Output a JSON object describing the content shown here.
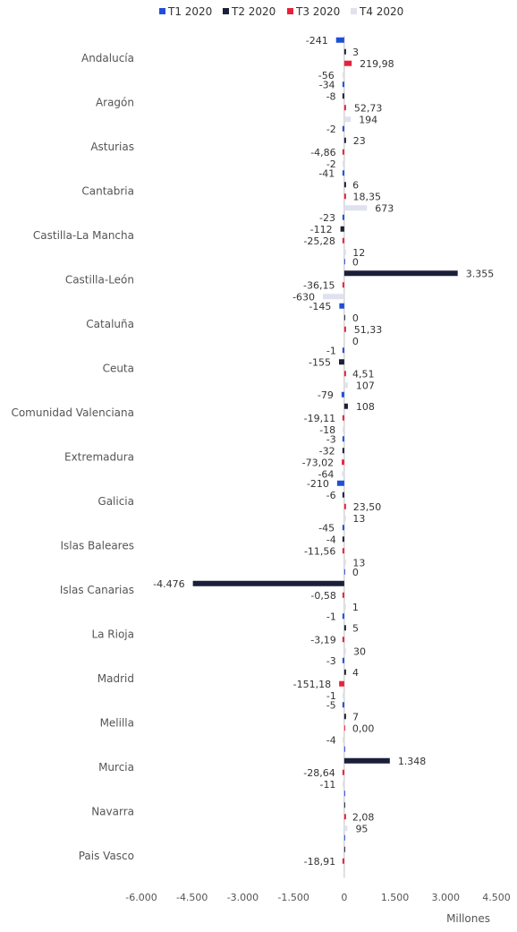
{
  "chart_data": {
    "type": "bar",
    "orientation": "horizontal",
    "xlabel": "Millones",
    "xlim": [
      -6000,
      4500
    ],
    "xticks": [
      -6000,
      -4500,
      -3000,
      -1500,
      0,
      1500,
      3000,
      4500
    ],
    "xtick_labels": [
      "-6.000",
      "-4.500",
      "-3.000",
      "-1.500",
      "0",
      "1.500",
      "3.000",
      "4.500"
    ],
    "legend_position": "top",
    "grid": false,
    "categories": [
      "Andalucía",
      "Aragón",
      "Asturias",
      "Cantabria",
      "Castilla-La Mancha",
      "Castilla-León",
      "Cataluña",
      "Ceuta",
      "Comunidad Valenciana",
      "Extremadura",
      "Galicia",
      "Islas Baleares",
      "Islas Canarias",
      "La Rioja",
      "Madrid",
      "Melilla",
      "Murcia",
      "Navarra",
      "Pais Vasco"
    ],
    "series": [
      {
        "name": "T1 2020",
        "color": "#1f4fd6",
        "values": [
          -241,
          -34,
          -2,
          -41,
          -23,
          0,
          -145,
          -1,
          -79,
          -3,
          -210,
          -45,
          0,
          -1,
          -3,
          -5,
          0,
          0,
          0
        ],
        "labels": [
          "-241",
          "-34",
          "-2",
          "-41",
          "-23",
          "0",
          "-145",
          "-1",
          "-79",
          "-3",
          "-210",
          "-45",
          "0",
          "-1",
          "-3",
          "-5",
          "",
          "",
          ""
        ]
      },
      {
        "name": "T2 2020",
        "color": "#1b1f3a",
        "values": [
          3,
          -8,
          23,
          6,
          -112,
          3355,
          0,
          -155,
          108,
          -32,
          -6,
          -4,
          -4476,
          5,
          4,
          7,
          1348,
          0,
          0
        ],
        "labels": [
          "3",
          "-8",
          "23",
          "6",
          "-112",
          "3.355",
          "0",
          "-155",
          "108",
          "-32",
          "-6",
          "-4",
          "-4.476",
          "5",
          "4",
          "7",
          "1.348",
          "",
          ""
        ]
      },
      {
        "name": "T3 2020",
        "color": "#e8213b",
        "values": [
          219.98,
          52.73,
          -4.86,
          18.35,
          -25.28,
          -36.15,
          51.33,
          4.51,
          -19.11,
          -73.02,
          23.5,
          -11.56,
          -0.58,
          -3.19,
          -151.18,
          0.0,
          -28.64,
          2.08,
          -18.91
        ],
        "labels": [
          "219,98",
          "52,73",
          "-4,86",
          "18,35",
          "-25,28",
          "-36,15",
          "51,33",
          "4,51",
          "-19,11",
          "-73,02",
          "23,50",
          "-11,56",
          "-0,58",
          "-3,19",
          "-151,18",
          "0,00",
          "-28,64",
          "2,08",
          "-18,91"
        ]
      },
      {
        "name": "T4 2020",
        "color": "#dfe2ee",
        "values": [
          -56,
          194,
          -2,
          673,
          12,
          -630,
          0,
          107,
          -18,
          -64,
          13,
          13,
          1,
          30,
          -1,
          -4,
          -11,
          95,
          0
        ],
        "labels": [
          "-56",
          "194",
          "-2",
          "673",
          "12",
          "-630",
          "0",
          "107",
          "-18",
          "-64",
          "13",
          "13",
          "1",
          "30",
          "-1",
          "-4",
          "-11",
          "95",
          ""
        ]
      }
    ]
  }
}
